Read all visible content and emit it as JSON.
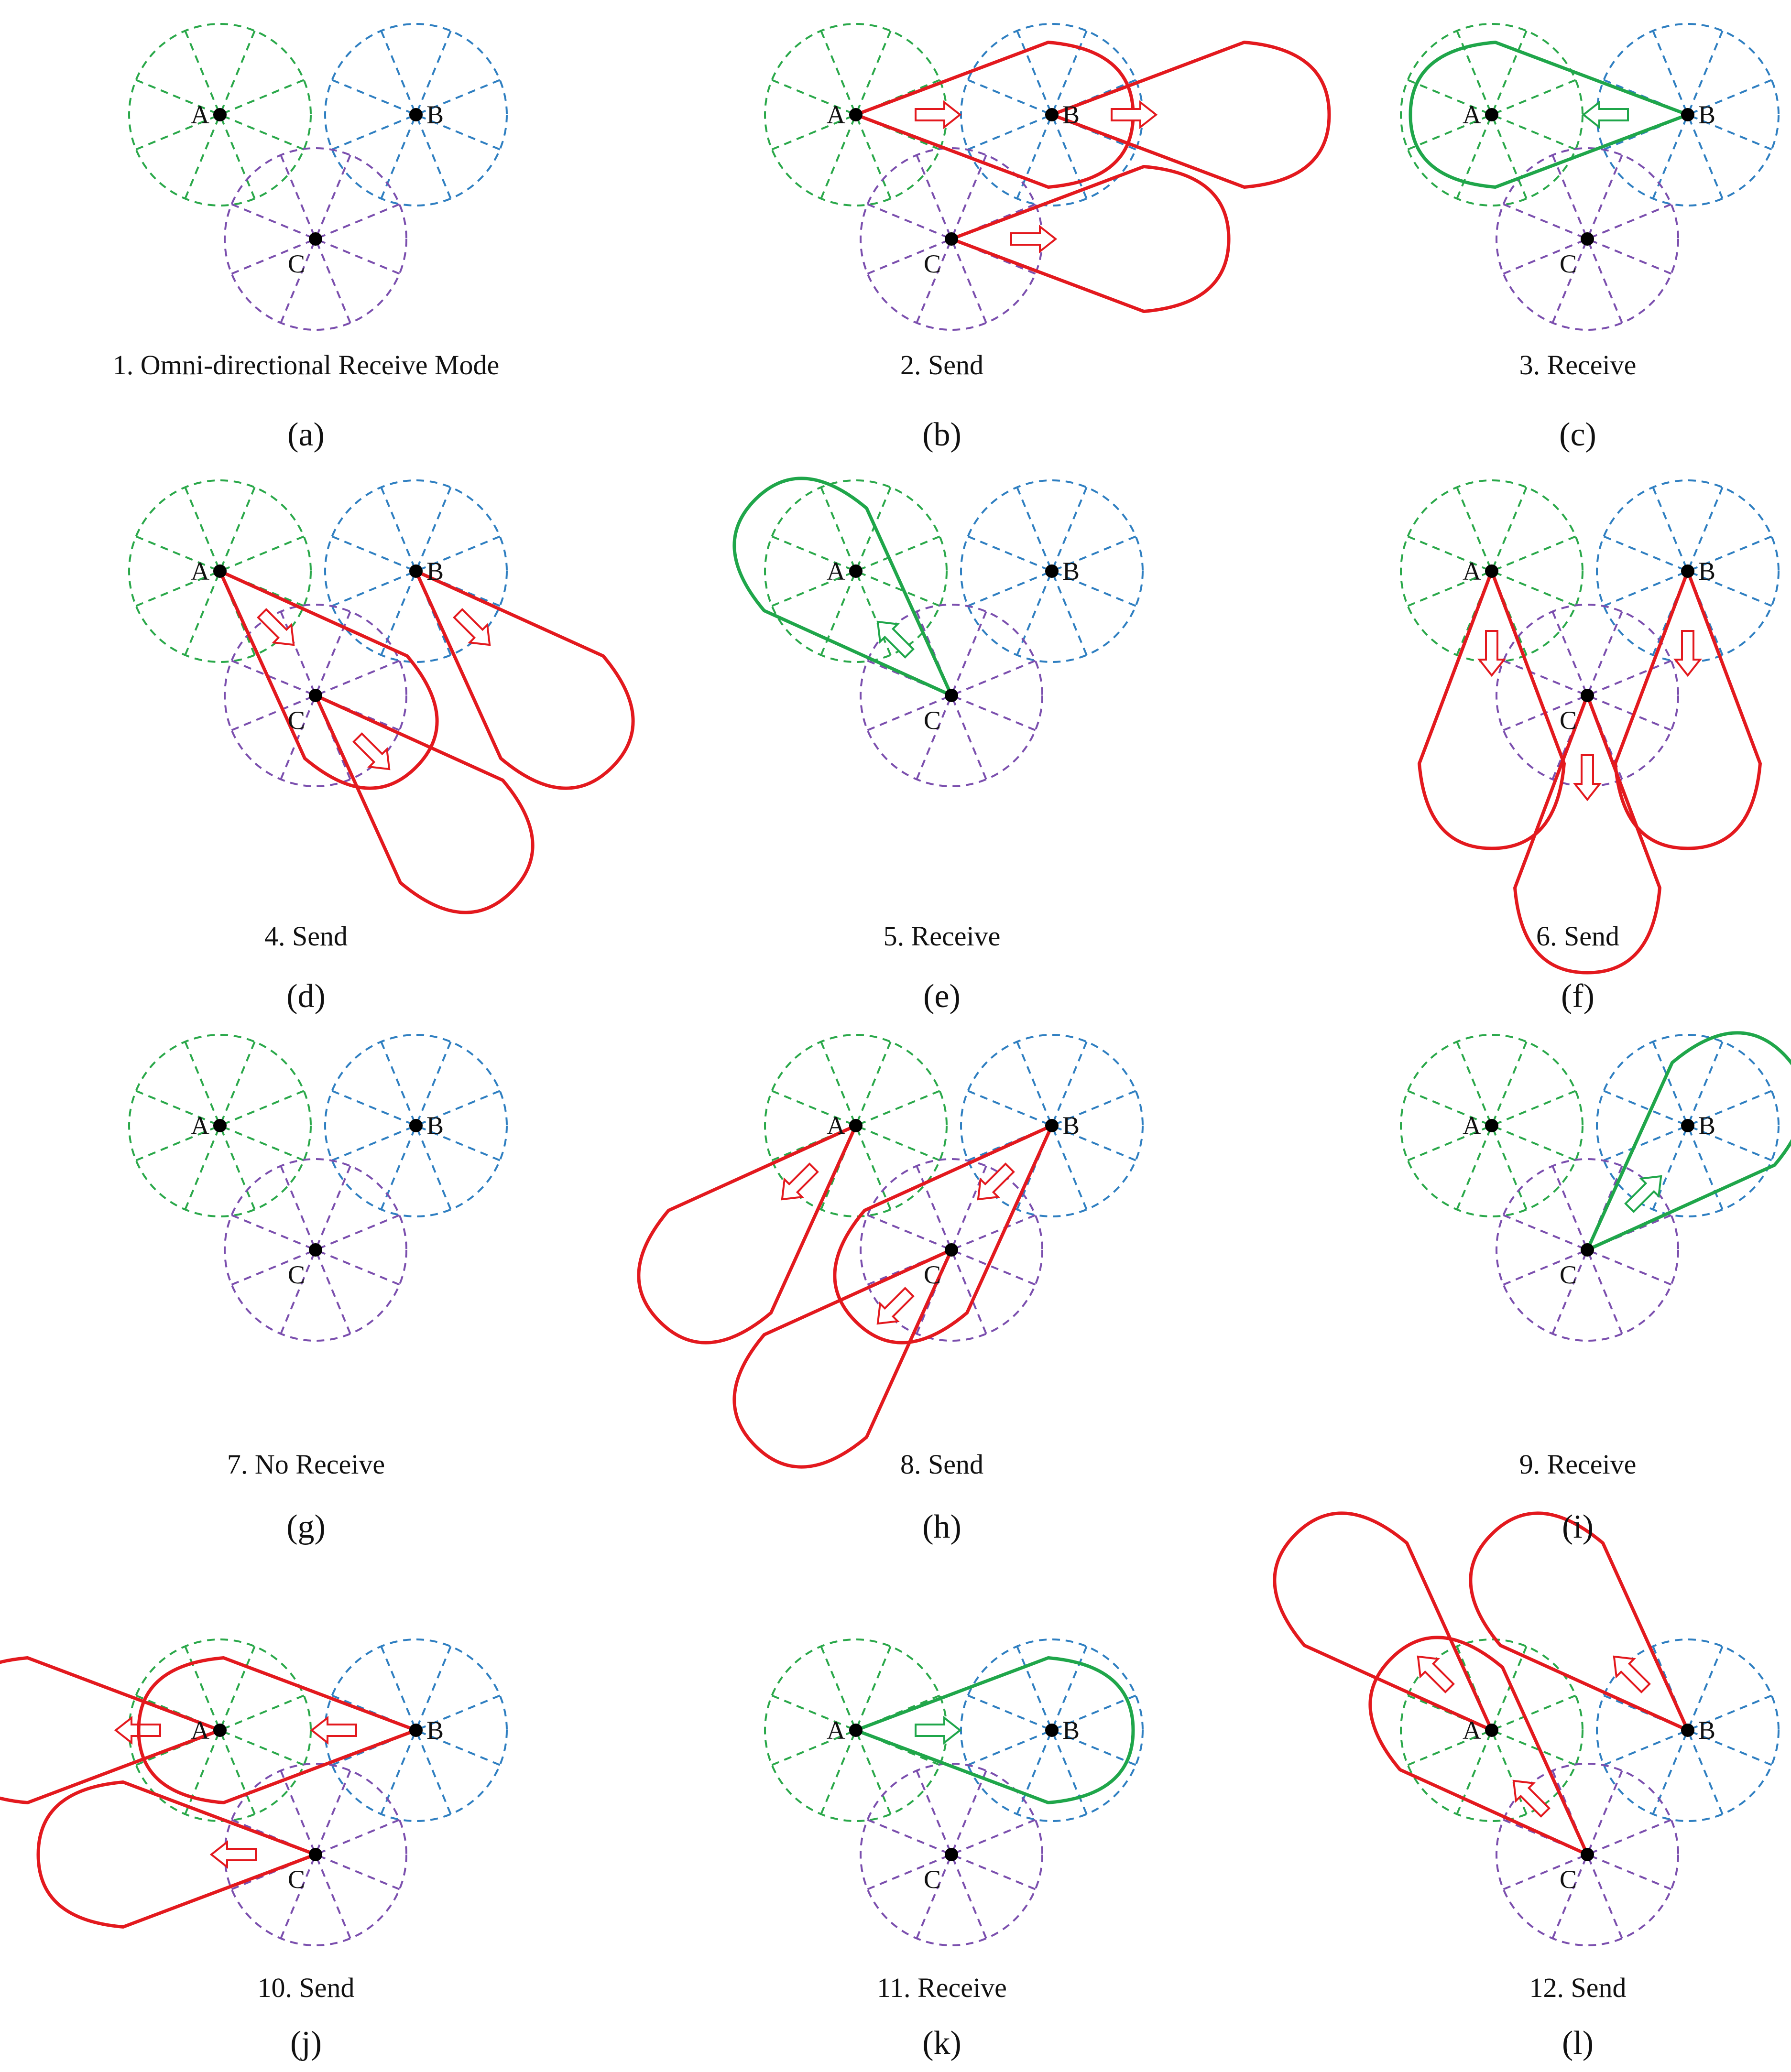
{
  "colors": {
    "node_A": "#2aa84a",
    "node_B": "#2f7fc1",
    "node_C": "#7b4fae",
    "send": "#e3191e",
    "receive": "#1fa64a",
    "dot": "#000000"
  },
  "node_labels": {
    "A": "A",
    "B": "B",
    "C": "C"
  },
  "panels": [
    {
      "id": "a",
      "caption": "1. Omni-directional Receive Mode",
      "sublabel": "(a)",
      "beams": []
    },
    {
      "id": "b",
      "caption": "2. Send",
      "sublabel": "(b)",
      "beams": [
        {
          "node": "A",
          "direction": "east",
          "kind": "send"
        },
        {
          "node": "B",
          "direction": "east",
          "kind": "send"
        },
        {
          "node": "C",
          "direction": "east",
          "kind": "send"
        }
      ]
    },
    {
      "id": "c",
      "caption": "3. Receive",
      "sublabel": "(c)",
      "beams": [
        {
          "node": "B",
          "direction": "west",
          "kind": "receive"
        }
      ]
    },
    {
      "id": "d",
      "caption": "4. Send",
      "sublabel": "(d)",
      "beams": [
        {
          "node": "A",
          "direction": "south-east",
          "kind": "send"
        },
        {
          "node": "B",
          "direction": "south-east",
          "kind": "send"
        },
        {
          "node": "C",
          "direction": "south-east",
          "kind": "send"
        }
      ]
    },
    {
      "id": "e",
      "caption": "5. Receive",
      "sublabel": "(e)",
      "beams": [
        {
          "node": "C",
          "direction": "north-west",
          "kind": "receive"
        }
      ]
    },
    {
      "id": "f",
      "caption": "6. Send",
      "sublabel": "(f)",
      "beams": [
        {
          "node": "A",
          "direction": "south",
          "kind": "send"
        },
        {
          "node": "B",
          "direction": "south",
          "kind": "send"
        },
        {
          "node": "C",
          "direction": "south",
          "kind": "send"
        }
      ]
    },
    {
      "id": "g",
      "caption": "7. No Receive",
      "sublabel": "(g)",
      "beams": []
    },
    {
      "id": "h",
      "caption": "8. Send",
      "sublabel": "(h)",
      "beams": [
        {
          "node": "A",
          "direction": "south-west",
          "kind": "send"
        },
        {
          "node": "B",
          "direction": "south-west",
          "kind": "send"
        },
        {
          "node": "C",
          "direction": "south-west",
          "kind": "send"
        }
      ]
    },
    {
      "id": "i",
      "caption": "9. Receive",
      "sublabel": "(i)",
      "beams": [
        {
          "node": "C",
          "direction": "north-east",
          "kind": "receive"
        }
      ]
    },
    {
      "id": "j",
      "caption": "10. Send",
      "sublabel": "(j)",
      "beams": [
        {
          "node": "A",
          "direction": "west",
          "kind": "send"
        },
        {
          "node": "B",
          "direction": "west",
          "kind": "send"
        },
        {
          "node": "C",
          "direction": "west",
          "kind": "send"
        }
      ]
    },
    {
      "id": "k",
      "caption": "11. Receive",
      "sublabel": "(k)",
      "beams": [
        {
          "node": "A",
          "direction": "east",
          "kind": "receive"
        }
      ]
    },
    {
      "id": "l",
      "caption": "12. Send",
      "sublabel": "(l)",
      "beams": [
        {
          "node": "A",
          "direction": "north-west",
          "kind": "send"
        },
        {
          "node": "B",
          "direction": "north-west",
          "kind": "send"
        },
        {
          "node": "C",
          "direction": "north-west",
          "kind": "send"
        }
      ]
    }
  ]
}
